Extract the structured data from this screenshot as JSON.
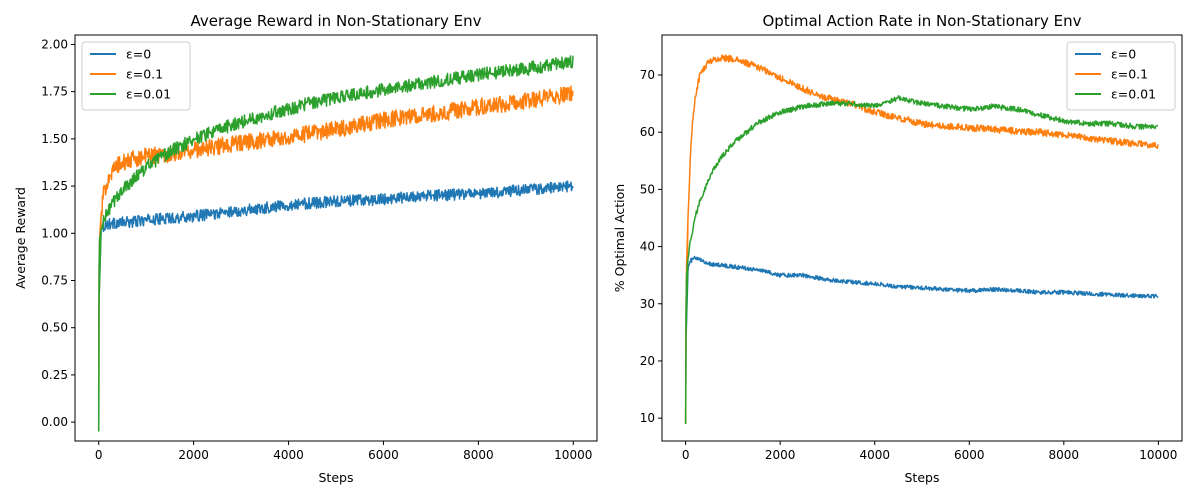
{
  "chart_data": [
    {
      "type": "line",
      "title": "Average Reward in Non-Stationary Env",
      "xlabel": "Steps",
      "ylabel": "Average Reward",
      "xlim": [
        -500,
        10500
      ],
      "ylim": [
        -0.1,
        2.05
      ],
      "xticks": [
        0,
        2000,
        4000,
        6000,
        8000,
        10000
      ],
      "xtick_labels": [
        "0",
        "2000",
        "4000",
        "6000",
        "8000",
        "10000"
      ],
      "yticks": [
        0.0,
        0.25,
        0.5,
        0.75,
        1.0,
        1.25,
        1.5,
        1.75,
        2.0
      ],
      "ytick_labels": [
        "0.00",
        "0.25",
        "0.50",
        "0.75",
        "1.00",
        "1.25",
        "1.50",
        "1.75",
        "2.00"
      ],
      "grid": false,
      "legend_position": "top-left",
      "series": [
        {
          "name": "ε=0",
          "color": "#1f77b4",
          "noise": 0.03,
          "x": [
            0,
            5,
            10,
            20,
            50,
            100,
            200,
            400,
            700,
            1000,
            1500,
            2000,
            3000,
            4000,
            5000,
            6000,
            7000,
            8000,
            9000,
            10000
          ],
          "y": [
            -0.05,
            0.6,
            0.85,
            0.97,
            1.02,
            1.04,
            1.05,
            1.055,
            1.06,
            1.07,
            1.08,
            1.09,
            1.12,
            1.15,
            1.17,
            1.18,
            1.2,
            1.21,
            1.23,
            1.25
          ]
        },
        {
          "name": "ε=0.1",
          "color": "#ff7f0e",
          "noise": 0.045,
          "x": [
            0,
            5,
            10,
            20,
            50,
            100,
            200,
            400,
            700,
            1000,
            1500,
            2000,
            3000,
            4000,
            5000,
            6000,
            7000,
            8000,
            9000,
            10000
          ],
          "y": [
            -0.05,
            0.6,
            0.85,
            0.98,
            1.1,
            1.2,
            1.3,
            1.36,
            1.39,
            1.41,
            1.42,
            1.44,
            1.48,
            1.51,
            1.55,
            1.6,
            1.63,
            1.67,
            1.7,
            1.74
          ]
        },
        {
          "name": "ε=0.01",
          "color": "#2ca02c",
          "noise": 0.035,
          "x": [
            0,
            5,
            10,
            20,
            50,
            100,
            200,
            400,
            700,
            1000,
            1500,
            2000,
            3000,
            4000,
            5000,
            6000,
            7000,
            8000,
            9000,
            10000
          ],
          "y": [
            -0.05,
            0.6,
            0.85,
            0.97,
            1.02,
            1.06,
            1.12,
            1.2,
            1.28,
            1.35,
            1.43,
            1.5,
            1.59,
            1.66,
            1.72,
            1.76,
            1.8,
            1.84,
            1.87,
            1.91
          ]
        }
      ]
    },
    {
      "type": "line",
      "title": "Optimal Action Rate in Non-Stationary Env",
      "xlabel": "Steps",
      "ylabel": "% Optimal Action",
      "xlim": [
        -500,
        10500
      ],
      "ylim": [
        6,
        77
      ],
      "xticks": [
        0,
        2000,
        4000,
        6000,
        8000,
        10000
      ],
      "xtick_labels": [
        "0",
        "2000",
        "4000",
        "6000",
        "8000",
        "10000"
      ],
      "yticks": [
        10,
        20,
        30,
        40,
        50,
        60,
        70
      ],
      "ytick_labels": [
        "10",
        "20",
        "30",
        "40",
        "50",
        "60",
        "70"
      ],
      "grid": false,
      "legend_position": "top-right",
      "series": [
        {
          "name": "ε=0",
          "color": "#1f77b4",
          "noise": 0.35,
          "x": [
            0,
            10,
            20,
            50,
            100,
            200,
            500,
            1000,
            1500,
            2000,
            2500,
            3000,
            3500,
            4000,
            4500,
            5000,
            5500,
            6000,
            6500,
            7000,
            7500,
            8000,
            8500,
            9000,
            9500,
            10000
          ],
          "y": [
            9,
            28,
            33,
            36,
            37.5,
            38,
            37,
            36.5,
            36,
            35,
            35,
            34.2,
            33.8,
            33.5,
            33,
            32.8,
            32.5,
            32.3,
            32.5,
            32.3,
            32,
            32,
            31.8,
            31.6,
            31.4,
            31.3
          ]
        },
        {
          "name": "ε=0.1",
          "color": "#ff7f0e",
          "noise": 0.6,
          "x": [
            0,
            10,
            20,
            50,
            100,
            150,
            200,
            300,
            500,
            800,
            1000,
            1500,
            2000,
            2500,
            3000,
            3500,
            4000,
            4500,
            5000,
            5500,
            6000,
            6500,
            7000,
            7500,
            8000,
            8500,
            9000,
            9500,
            10000
          ],
          "y": [
            9,
            30,
            37,
            45,
            56,
            62,
            66,
            70,
            72.5,
            73,
            72.8,
            71.5,
            69.5,
            67.5,
            66,
            65,
            63.5,
            62.5,
            61.5,
            61,
            60.8,
            60.5,
            60.2,
            60,
            59.5,
            59,
            58.5,
            58,
            57.8
          ]
        },
        {
          "name": "ε=0.01",
          "color": "#2ca02c",
          "noise": 0.45,
          "x": [
            0,
            10,
            20,
            50,
            100,
            200,
            300,
            500,
            700,
            1000,
            1500,
            2000,
            2500,
            3000,
            3500,
            4000,
            4500,
            5000,
            5500,
            6000,
            6500,
            7000,
            7500,
            8000,
            8500,
            9000,
            9500,
            10000
          ],
          "y": [
            9,
            30,
            35,
            38,
            41,
            45,
            48,
            52,
            55,
            58,
            61.5,
            63.5,
            64.5,
            65,
            65,
            64.5,
            66,
            65,
            64.5,
            64,
            64.5,
            64,
            63,
            62,
            61.5,
            61.5,
            61,
            61
          ]
        }
      ]
    }
  ]
}
